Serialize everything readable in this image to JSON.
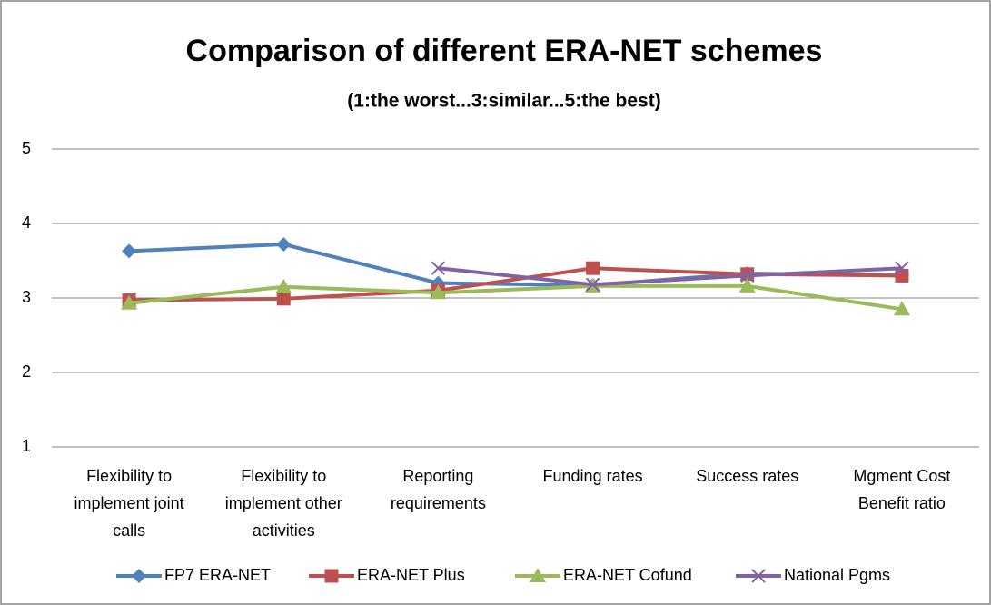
{
  "chart_data": {
    "type": "line",
    "title": "Comparison of different ERA-NET schemes",
    "subtitle": "(1:the worst...3:similar...5:the best)",
    "categories": [
      "Flexibility to implement joint calls",
      "Flexibility to implement other activities",
      "Reporting requirements",
      "Funding rates",
      "Success rates",
      "Mgment Cost Benefit ratio"
    ],
    "series": [
      {
        "name": "FP7 ERA-NET",
        "color": "#4f81bd",
        "marker": "diamond",
        "values": [
          3.63,
          3.72,
          3.2,
          3.17,
          3.33,
          3.3
        ]
      },
      {
        "name": "ERA-NET Plus",
        "color": "#c0504d",
        "marker": "square",
        "values": [
          2.97,
          2.99,
          3.1,
          3.4,
          3.32,
          3.3
        ]
      },
      {
        "name": "ERA-NET Cofund",
        "color": "#9bbb59",
        "marker": "triangle",
        "values": [
          2.93,
          3.15,
          3.07,
          3.16,
          3.16,
          2.85
        ]
      },
      {
        "name": "National Pgms",
        "color": "#8064a2",
        "marker": "x",
        "values": [
          null,
          null,
          3.4,
          3.18,
          3.3,
          3.4
        ]
      }
    ],
    "ylim": [
      1,
      5
    ],
    "yticks": [
      1,
      2,
      3,
      4,
      5
    ],
    "grid": true,
    "legend": "bottom"
  }
}
